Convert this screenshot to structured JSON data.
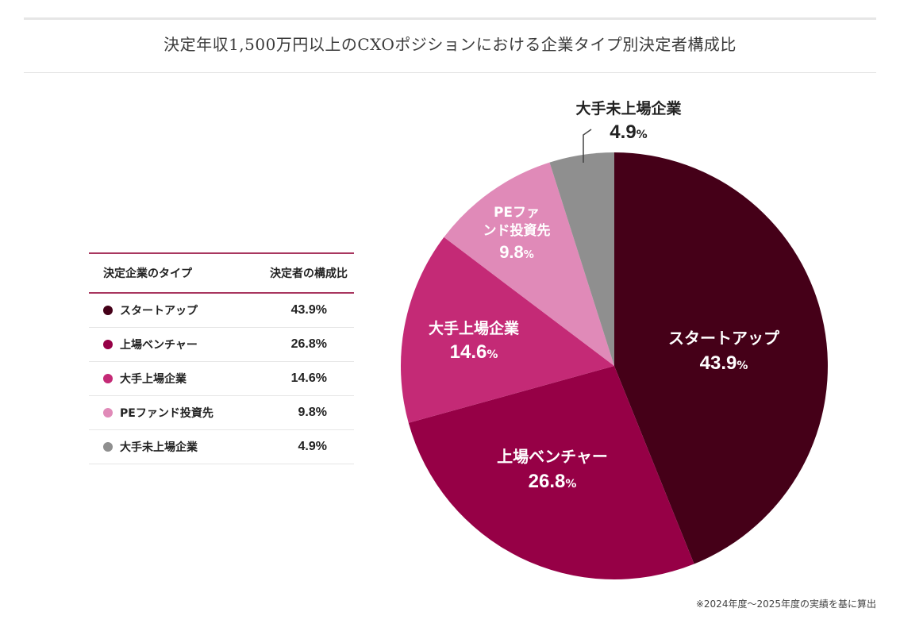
{
  "title": "決定年収1,500万円以上のCXOポジションにおける企業タイプ別決定者構成比",
  "legend": {
    "header_type": "決定企業のタイプ",
    "header_ratio": "決定者の構成比",
    "rows": [
      {
        "label": "スタートアップ",
        "value": "43.9%",
        "color": "#450018"
      },
      {
        "label": "上場ベンチャー",
        "value": "26.8%",
        "color": "#960046"
      },
      {
        "label": "大手上場企業",
        "value": "14.6%",
        "color": "#c42a76"
      },
      {
        "label": "PEファンド投資先",
        "value": "9.8%",
        "color": "#e08ab8"
      },
      {
        "label": "大手未上場企業",
        "value": "4.9%",
        "color": "#8f8f8f"
      }
    ]
  },
  "chart_data": {
    "type": "pie",
    "title": "決定年収1,500万円以上のCXOポジションにおける企業タイプ別決定者構成比",
    "slices": [
      {
        "label": "スタートアップ",
        "value": 43.9,
        "display": "43.9",
        "color": "#450018"
      },
      {
        "label": "上場ベンチャー",
        "value": 26.8,
        "display": "26.8",
        "color": "#960046"
      },
      {
        "label": "大手上場企業",
        "value": 14.6,
        "display": "14.6",
        "color": "#c42a76"
      },
      {
        "label": "PEファンド投資先",
        "value": 9.8,
        "display": "9.8",
        "color": "#e08ab8"
      },
      {
        "label": "大手未上場企業",
        "value": 4.9,
        "display": "4.9",
        "color": "#8f8f8f"
      }
    ],
    "unit": "%",
    "label_placement": "inside; smallest slice labeled outside top-left with leader line"
  },
  "footnote": "※2024年度〜2025年度の実績を基に算出"
}
